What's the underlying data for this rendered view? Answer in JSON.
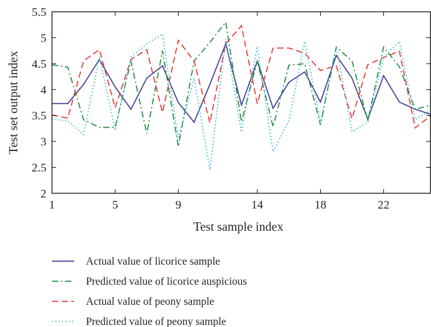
{
  "chart_data": {
    "type": "line",
    "title": "",
    "xlabel": "Test sample index",
    "ylabel": "Test set output index",
    "xlim": [
      1,
      25
    ],
    "ylim": [
      2,
      5.5
    ],
    "xticks": [
      1,
      5,
      9,
      14,
      18,
      22
    ],
    "xtick_labels": [
      "1",
      "5",
      "9",
      "14",
      "18",
      "22"
    ],
    "yticks": [
      2,
      2.5,
      3,
      3.5,
      4,
      4.5,
      5,
      5.5
    ],
    "ytick_labels": [
      "2",
      "2.5",
      "3",
      "3.5",
      "4",
      "4.5",
      "5",
      "5.5"
    ],
    "grid": false,
    "legend_position": "below",
    "x": [
      1,
      2,
      3,
      4,
      5,
      6,
      7,
      8,
      9,
      10,
      11,
      12,
      13,
      14,
      15,
      16,
      17,
      18,
      19,
      20,
      21,
      22,
      23,
      24,
      25
    ],
    "series": [
      {
        "name": "Actual value of licorice sample",
        "color": "#3b3494",
        "dash": "solid",
        "values": [
          3.73,
          3.73,
          4.1,
          4.58,
          4.05,
          3.62,
          4.22,
          4.46,
          3.75,
          3.37,
          4.1,
          4.88,
          3.7,
          4.55,
          3.64,
          4.14,
          4.34,
          3.76,
          4.66,
          4.22,
          3.43,
          4.27,
          3.76,
          3.62,
          3.52
        ]
      },
      {
        "name": "Predicted value of licorice auspicious",
        "color": "#1a8a3a",
        "dash": "dashdot",
        "values": [
          4.48,
          4.43,
          3.42,
          3.27,
          3.27,
          4.55,
          3.15,
          4.75,
          2.9,
          4.55,
          4.91,
          5.3,
          3.38,
          4.55,
          3.28,
          4.47,
          4.5,
          3.32,
          4.82,
          4.55,
          3.4,
          4.82,
          4.44,
          3.62,
          3.7
        ]
      },
      {
        "name": "Actual value of peony sample",
        "color": "#e8332e",
        "dash": "dashed",
        "values": [
          3.51,
          3.45,
          4.55,
          4.77,
          3.65,
          4.58,
          4.77,
          3.56,
          4.95,
          4.55,
          3.36,
          4.88,
          5.23,
          3.73,
          4.8,
          4.8,
          4.7,
          4.37,
          4.46,
          3.44,
          4.48,
          4.62,
          4.74,
          3.26,
          3.5
        ]
      },
      {
        "name": "Predicted value of peony sample",
        "color": "#2ab8c9",
        "dash": "dotted",
        "values": [
          3.43,
          3.4,
          3.13,
          4.63,
          3.22,
          4.63,
          4.88,
          5.07,
          3.05,
          4.22,
          2.45,
          4.98,
          3.18,
          4.83,
          2.8,
          3.4,
          4.93,
          3.37,
          4.82,
          3.19,
          3.37,
          4.62,
          4.93,
          3.42,
          3.6
        ]
      }
    ]
  }
}
